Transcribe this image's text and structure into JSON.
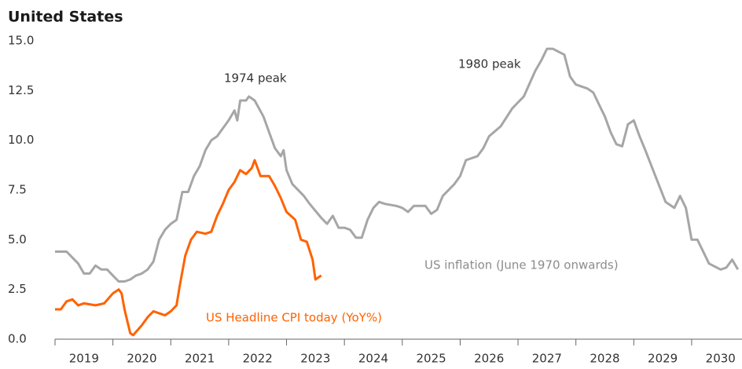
{
  "chart_data": {
    "type": "line",
    "title": "United States",
    "annotations": [
      "1974 peak",
      "1980 peak",
      "US inflation (June 1970 onwards)",
      "US Headline CPI today (YoY%)"
    ],
    "xlim": [
      2019,
      2030.87
    ],
    "xticks": [
      2019,
      2020,
      2021,
      2022,
      2023,
      2024,
      2025,
      2026,
      2027,
      2028,
      2029,
      2030
    ],
    "ylim": [
      0,
      15
    ],
    "yticks": [
      {
        "value": 0,
        "label": "0.0"
      },
      {
        "value": 2.5,
        "label": "2.5"
      },
      {
        "value": 5,
        "label": "5.0"
      },
      {
        "value": 7.5,
        "label": "7.5"
      },
      {
        "value": 10,
        "label": "10.0"
      },
      {
        "value": 12.5,
        "label": "12.5"
      },
      {
        "value": 15,
        "label": "15.0"
      }
    ],
    "grid": false,
    "series": [
      {
        "name": "US inflation (June 1970 onwards)",
        "color": "#a6a6a6",
        "x": [
          2019.0,
          2019.2,
          2019.4,
          2019.5,
          2019.6,
          2019.7,
          2019.8,
          2019.9,
          2020.0,
          2020.1,
          2020.2,
          2020.3,
          2020.4,
          2020.5,
          2020.6,
          2020.7,
          2020.8,
          2020.9,
          2021.0,
          2021.1,
          2021.2,
          2021.3,
          2021.4,
          2021.5,
          2021.6,
          2021.7,
          2021.8,
          2021.9,
          2022.0,
          2022.1,
          2022.15,
          2022.2,
          2022.3,
          2022.35,
          2022.45,
          2022.6,
          2022.7,
          2022.8,
          2022.9,
          2022.95,
          2023.0,
          2023.1,
          2023.3,
          2023.4,
          2023.6,
          2023.7,
          2023.8,
          2023.9,
          2024.0,
          2024.1,
          2024.2,
          2024.3,
          2024.4,
          2024.5,
          2024.6,
          2024.7,
          2024.9,
          2025.0,
          2025.1,
          2025.2,
          2025.4,
          2025.5,
          2025.6,
          2025.7,
          2025.9,
          2026.0,
          2026.1,
          2026.3,
          2026.4,
          2026.5,
          2026.7,
          2026.9,
          2027.0,
          2027.1,
          2027.3,
          2027.4,
          2027.5,
          2027.6,
          2027.8,
          2027.9,
          2028.0,
          2028.2,
          2028.3,
          2028.4,
          2028.5,
          2028.6,
          2028.7,
          2028.8,
          2028.9,
          2029.0,
          2029.1,
          2029.2,
          2029.4,
          2029.55,
          2029.7,
          2029.8,
          2029.9,
          2030.0,
          2030.1,
          2030.3,
          2030.5,
          2030.6,
          2030.7,
          2030.8
        ],
        "values": [
          4.4,
          4.4,
          3.8,
          3.3,
          3.3,
          3.7,
          3.5,
          3.5,
          3.2,
          2.9,
          2.9,
          3.0,
          3.2,
          3.3,
          3.5,
          3.9,
          5.0,
          5.5,
          5.8,
          6.0,
          7.4,
          7.4,
          8.2,
          8.7,
          9.5,
          10.0,
          10.2,
          10.6,
          11.0,
          11.5,
          11.0,
          12.0,
          12.0,
          12.2,
          12.0,
          11.2,
          10.4,
          9.6,
          9.2,
          9.5,
          8.5,
          7.8,
          7.2,
          6.8,
          6.1,
          5.8,
          6.2,
          5.6,
          5.6,
          5.5,
          5.1,
          5.1,
          6.0,
          6.6,
          6.9,
          6.8,
          6.7,
          6.6,
          6.4,
          6.7,
          6.7,
          6.3,
          6.5,
          7.2,
          7.8,
          8.2,
          9.0,
          9.2,
          9.6,
          10.2,
          10.7,
          11.6,
          11.9,
          12.2,
          13.5,
          14.0,
          14.6,
          14.6,
          14.3,
          13.2,
          12.8,
          12.6,
          12.4,
          11.8,
          11.2,
          10.4,
          9.8,
          9.7,
          10.8,
          11.0,
          10.2,
          9.5,
          8.0,
          6.9,
          6.6,
          7.2,
          6.6,
          5.0,
          5.0,
          3.8,
          3.5,
          3.6,
          4.0,
          3.5
        ]
      },
      {
        "name": "US Headline CPI today (YoY%)",
        "color": "#ff6200",
        "x": [
          2019.0,
          2019.1,
          2019.2,
          2019.3,
          2019.4,
          2019.5,
          2019.7,
          2019.85,
          2020.0,
          2020.1,
          2020.15,
          2020.2,
          2020.3,
          2020.35,
          2020.5,
          2020.6,
          2020.7,
          2020.8,
          2020.9,
          2021.0,
          2021.1,
          2021.15,
          2021.25,
          2021.35,
          2021.45,
          2021.6,
          2021.7,
          2021.8,
          2021.9,
          2022.0,
          2022.1,
          2022.2,
          2022.3,
          2022.4,
          2022.45,
          2022.55,
          2022.7,
          2022.8,
          2022.9,
          2023.0,
          2023.15,
          2023.25,
          2023.35,
          2023.45,
          2023.5,
          2023.6
        ],
        "values": [
          1.5,
          1.5,
          1.9,
          2.0,
          1.7,
          1.8,
          1.7,
          1.8,
          2.3,
          2.5,
          2.3,
          1.5,
          0.3,
          0.2,
          0.7,
          1.1,
          1.4,
          1.3,
          1.2,
          1.4,
          1.7,
          2.6,
          4.2,
          5.0,
          5.4,
          5.3,
          5.4,
          6.2,
          6.8,
          7.5,
          7.9,
          8.5,
          8.3,
          8.6,
          9.0,
          8.2,
          8.2,
          7.7,
          7.1,
          6.4,
          6.0,
          5.0,
          4.9,
          4.0,
          3.0,
          3.2
        ]
      }
    ]
  }
}
